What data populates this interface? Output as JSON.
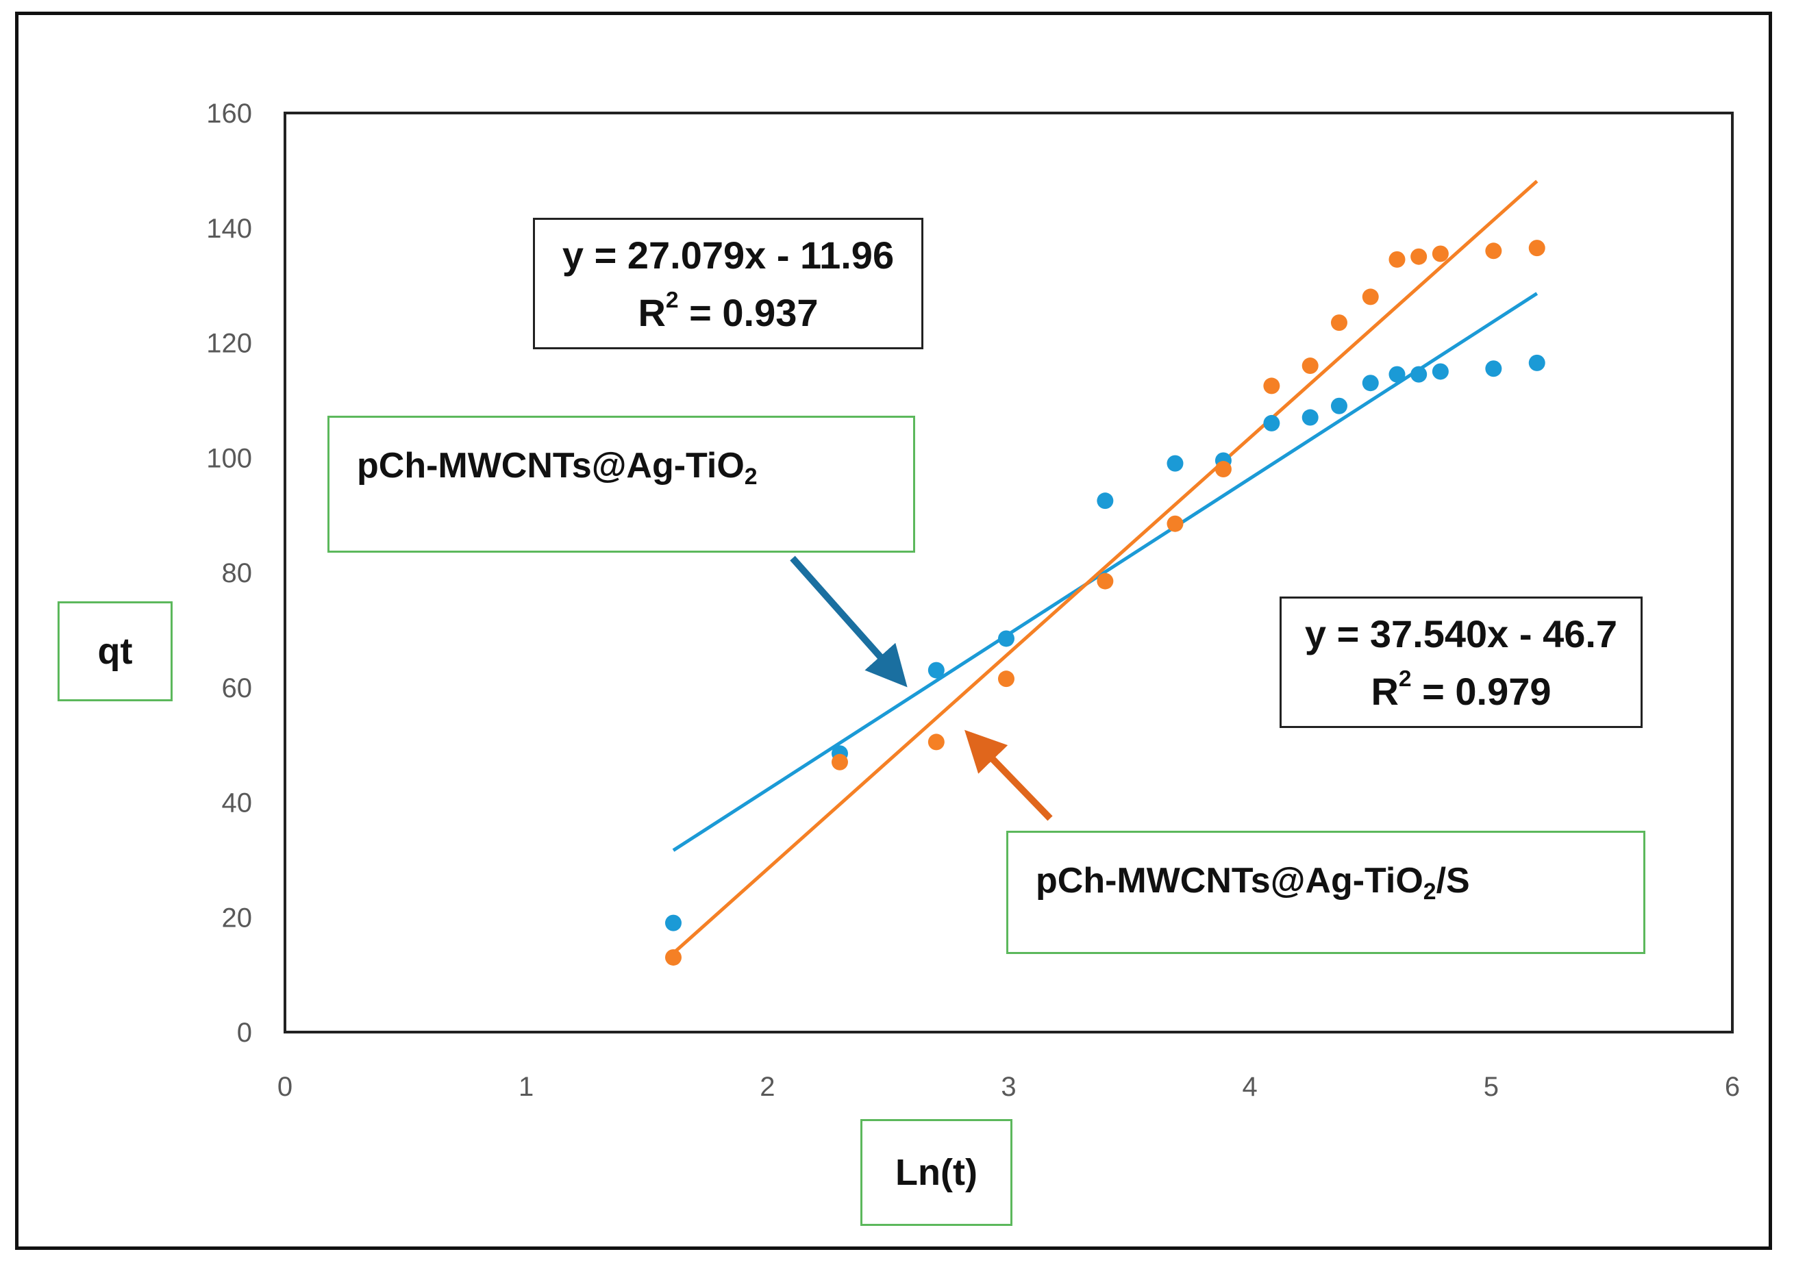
{
  "chart_data": {
    "type": "scatter",
    "xlabel": "Ln(t)",
    "ylabel": "qt",
    "xlim": [
      0,
      6
    ],
    "ylim": [
      0,
      160
    ],
    "x_ticks": [
      "0",
      "1",
      "2",
      "3",
      "4",
      "5",
      "6"
    ],
    "y_ticks": [
      "0",
      "20",
      "40",
      "60",
      "80",
      "100",
      "120",
      "140",
      "160"
    ],
    "grid": false,
    "legend": "none",
    "series": [
      {
        "label_main": "pCh-MWCNTs@Ag-TiO",
        "label_sub": "2",
        "label_tail": "",
        "color": "#1b9ad6",
        "points": [
          [
            1.61,
            19
          ],
          [
            2.3,
            48.5
          ],
          [
            2.7,
            63
          ],
          [
            2.99,
            68.5
          ],
          [
            3.4,
            92.5
          ],
          [
            3.69,
            99
          ],
          [
            3.89,
            99.5
          ],
          [
            4.09,
            106
          ],
          [
            4.25,
            107
          ],
          [
            4.37,
            109
          ],
          [
            4.5,
            113
          ],
          [
            4.61,
            114.5
          ],
          [
            4.7,
            114.5
          ],
          [
            4.79,
            115
          ],
          [
            5.01,
            115.5
          ],
          [
            5.19,
            116.5
          ]
        ],
        "trendline": {
          "slope": 27.079,
          "intercept": -11.96,
          "x_range": [
            1.61,
            5.19
          ]
        },
        "equation_prefix": "y = 27.079x - 11.96",
        "r2_prefix": "R",
        "r2_sup": "2",
        "r2_value": " = 0.937"
      },
      {
        "label_main": "pCh-MWCNTs@Ag-TiO",
        "label_sub": "2",
        "label_tail": "/S",
        "color": "#f58025",
        "points": [
          [
            1.61,
            13
          ],
          [
            2.3,
            47
          ],
          [
            2.7,
            50.5
          ],
          [
            2.99,
            61.5
          ],
          [
            3.4,
            78.5
          ],
          [
            3.69,
            88.5
          ],
          [
            3.89,
            98
          ],
          [
            4.09,
            112.5
          ],
          [
            4.25,
            116
          ],
          [
            4.37,
            123.5
          ],
          [
            4.5,
            128
          ],
          [
            4.61,
            134.5
          ],
          [
            4.7,
            135
          ],
          [
            4.79,
            135.5
          ],
          [
            5.01,
            136
          ],
          [
            5.19,
            136.5
          ]
        ],
        "trendline": {
          "slope": 37.54,
          "intercept": -46.7,
          "x_range": [
            1.61,
            5.19
          ]
        },
        "equation_prefix": "y = 37.540x - 46.7",
        "r2_prefix": "R",
        "r2_sup": "2",
        "r2_value": " = 0.979"
      }
    ],
    "colors": {
      "axis": "#222222",
      "tick_text": "#595959",
      "label_border": "#5cb85c",
      "eq_border": "#222222"
    }
  }
}
